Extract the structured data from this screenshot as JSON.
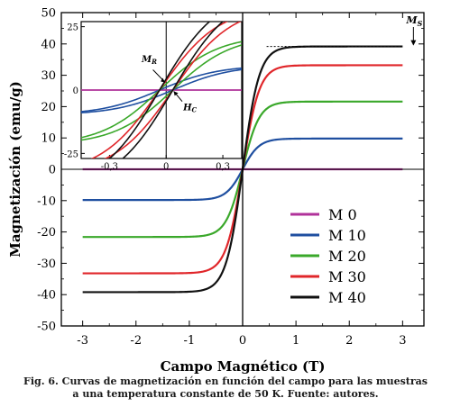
{
  "chart_data": [
    {
      "type": "line",
      "xlabel": "Campo Magnético (T)",
      "ylabel": "Magnetización (emu/g)",
      "xlim": [
        -3.4,
        3.4
      ],
      "ylim": [
        -50,
        50
      ],
      "xticks": [
        -3,
        -2,
        -1,
        0,
        1,
        2,
        3
      ],
      "xtick_labels": [
        "-3",
        "-2",
        "-1",
        "0",
        "1",
        "2",
        "3"
      ],
      "yticks": [
        -50,
        -40,
        -30,
        -20,
        -10,
        0,
        10,
        20,
        30,
        40,
        50
      ],
      "ytick_labels": [
        "-50",
        "-40",
        "-30",
        "-20",
        "-10",
        "0",
        "10",
        "20",
        "30",
        "40",
        "50"
      ],
      "legend_position": "lower-right",
      "series": [
        {
          "name": "M 0",
          "color": "#b0329a",
          "values": [
            [
              -3,
              0
            ],
            [
              -2,
              0
            ],
            [
              -1,
              0
            ],
            [
              0,
              0
            ],
            [
              1,
              0
            ],
            [
              2,
              0
            ],
            [
              3,
              0
            ]
          ]
        },
        {
          "name": "M 10",
          "color": "#1f4fa0",
          "values": [
            [
              -3,
              -9.8
            ],
            [
              -2,
              -9.7
            ],
            [
              -1,
              -9.3
            ],
            [
              -0.5,
              -8.2
            ],
            [
              -0.2,
              -5.6
            ],
            [
              0,
              0
            ],
            [
              0.2,
              5.6
            ],
            [
              0.5,
              8.2
            ],
            [
              1,
              9.3
            ],
            [
              2,
              9.7
            ],
            [
              3,
              9.8
            ]
          ]
        },
        {
          "name": "M 20",
          "color": "#3aa82a",
          "values": [
            [
              -3,
              -21.6
            ],
            [
              -2,
              -21.4
            ],
            [
              -1,
              -20.5
            ],
            [
              -0.5,
              -18.1
            ],
            [
              -0.2,
              -12.3
            ],
            [
              0,
              0
            ],
            [
              0.2,
              12.3
            ],
            [
              0.5,
              18.1
            ],
            [
              1,
              20.5
            ],
            [
              2,
              21.4
            ],
            [
              3,
              21.6
            ]
          ]
        },
        {
          "name": "M 30",
          "color": "#e0262a",
          "values": [
            [
              -3,
              -33.2
            ],
            [
              -2,
              -33.0
            ],
            [
              -1,
              -31.6
            ],
            [
              -0.5,
              -27.8
            ],
            [
              -0.2,
              -18.9
            ],
            [
              0,
              0
            ],
            [
              0.2,
              18.9
            ],
            [
              0.5,
              27.8
            ],
            [
              1,
              31.6
            ],
            [
              2,
              33.0
            ],
            [
              3,
              33.2
            ]
          ]
        },
        {
          "name": "M 40",
          "color": "#111111",
          "values": [
            [
              -3,
              -39.2
            ],
            [
              -2,
              -39.0
            ],
            [
              -1,
              -37.3
            ],
            [
              -0.5,
              -32.9
            ],
            [
              -0.2,
              -22.3
            ],
            [
              0,
              0
            ],
            [
              0.2,
              22.3
            ],
            [
              0.5,
              32.9
            ],
            [
              1,
              37.3
            ],
            [
              2,
              39.0
            ],
            [
              3,
              39.2
            ]
          ]
        }
      ],
      "annotations": [
        {
          "text": "M",
          "subscript": "S",
          "x": 3.0,
          "y": 39.2
        }
      ]
    },
    {
      "type": "line",
      "role": "inset",
      "xlim": [
        -0.45,
        0.4
      ],
      "ylim": [
        -27,
        27
      ],
      "xticks": [
        -0.3,
        0,
        0.3
      ],
      "xtick_labels": [
        "-0,3",
        "0",
        "0,3"
      ],
      "yticks": [
        -25,
        0,
        25
      ],
      "ytick_labels": [
        "-25",
        "0",
        "25"
      ],
      "series": [
        {
          "name": "M 0",
          "color": "#b0329a",
          "values": [
            [
              -0.45,
              0
            ],
            [
              0.4,
              0
            ]
          ]
        },
        {
          "name": "M 10",
          "color": "#1f4fa0",
          "values": [
            [
              -0.45,
              -8.0
            ],
            [
              -0.2,
              -5.6
            ],
            [
              0,
              0
            ],
            [
              0.2,
              5.6
            ],
            [
              0.4,
              7.8
            ]
          ]
        },
        {
          "name": "M 20",
          "color": "#3aa82a",
          "values": [
            [
              -0.45,
              -17.5
            ],
            [
              -0.2,
              -12.3
            ],
            [
              0,
              0
            ],
            [
              0.2,
              12.3
            ],
            [
              0.4,
              17.0
            ]
          ]
        },
        {
          "name": "M 30",
          "color": "#e0262a",
          "values": [
            [
              -0.45,
              -27
            ],
            [
              -0.2,
              -18.9
            ],
            [
              0,
              0
            ],
            [
              0.2,
              18.9
            ],
            [
              0.4,
              26
            ]
          ]
        },
        {
          "name": "M 40",
          "color": "#111111",
          "values": [
            [
              -0.45,
              -27
            ],
            [
              -0.2,
              -22.3
            ],
            [
              0,
              0
            ],
            [
              0.2,
              22.3
            ],
            [
              0.4,
              27
            ]
          ]
        }
      ],
      "annotations": [
        {
          "text": "M",
          "subscript": "R"
        },
        {
          "text": "H",
          "subscript": "C"
        }
      ]
    }
  ],
  "caption": {
    "line1": "Fig. 6. Curvas de magnetización en función del campo para las muestras",
    "line2": "a una temperatura constante de 50 K.  Fuente: autores."
  }
}
